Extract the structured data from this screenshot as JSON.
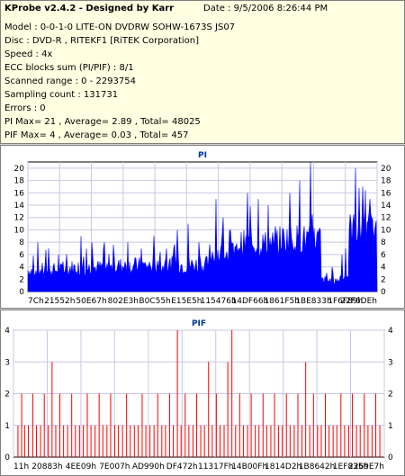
{
  "info": {
    "title": "KProbe v2.4.2 - Designed by Karr",
    "date": "Date : 9/5/2006 8:26:44 PM",
    "lines": [
      "Model : 0-0-1-0 LITE-ON DVDRW SOHW-1673S JS07",
      "Disc : DVD-R , RITEKF1 [RiTEK Corporation]",
      "Speed : 4x",
      "ECC blocks sum (PI/PIF) : 8/1",
      "Scanned range : 0 - 2293754",
      "Sampling count : 131731",
      "Errors : 0",
      "PI Max= 21 , Average= 2.89 , Total= 48025",
      "PIF Max= 4 , Average= 0.03 , Total= 457"
    ]
  },
  "colors": {
    "pi": "#0000ff",
    "pif": "#ff0000",
    "grid": "#c8c8e6",
    "bg": "#ffffe1"
  },
  "chart_data": [
    {
      "type": "bar",
      "title": "PI",
      "ylim": [
        0,
        21
      ],
      "yticks": [
        0,
        2,
        4,
        6,
        8,
        10,
        12,
        14,
        16,
        18,
        20
      ],
      "xtick_labels": [
        "7Ch",
        "21552h",
        "50E67h",
        "802E3h",
        "B0C55h",
        "E15E5h",
        "115476h",
        "14DF66h",
        "1861F5h",
        "1BE833h",
        "1F6F89h",
        "22F6DEh"
      ],
      "segments": [
        {
          "from": 0.0,
          "to": 0.12,
          "base": 2.2,
          "amp": 2.5,
          "spikes": [
            8,
            7,
            6
          ]
        },
        {
          "from": 0.12,
          "to": 0.25,
          "base": 2.4,
          "amp": 2.8,
          "spikes": [
            9,
            8,
            7
          ]
        },
        {
          "from": 0.25,
          "to": 0.4,
          "base": 2.6,
          "amp": 3.0,
          "spikes": [
            8,
            7,
            9
          ]
        },
        {
          "from": 0.4,
          "to": 0.52,
          "base": 2.8,
          "amp": 3.0,
          "spikes": [
            10,
            11,
            8
          ]
        },
        {
          "from": 0.52,
          "to": 0.6,
          "base": 4.2,
          "amp": 4.0,
          "spikes": [
            15,
            12,
            10
          ]
        },
        {
          "from": 0.6,
          "to": 0.72,
          "base": 5.5,
          "amp": 4.5,
          "spikes": [
            16,
            15,
            14
          ]
        },
        {
          "from": 0.72,
          "to": 0.84,
          "base": 6.0,
          "amp": 5.0,
          "spikes": [
            16,
            18,
            21
          ]
        },
        {
          "from": 0.84,
          "to": 0.89,
          "base": 1.0,
          "amp": 1.5,
          "spikes": [
            3,
            4
          ]
        },
        {
          "from": 0.89,
          "to": 0.92,
          "base": 1.5,
          "amp": 2.0,
          "spikes": [
            6,
            7
          ]
        },
        {
          "from": 0.92,
          "to": 1.0,
          "base": 7.0,
          "amp": 6.0,
          "spikes": [
            20,
            17,
            15
          ]
        }
      ]
    },
    {
      "type": "bar",
      "title": "PIF",
      "ylim": [
        0,
        4
      ],
      "yticks": [
        0,
        1,
        2,
        3,
        4
      ],
      "xtick_labels": [
        "11h",
        "20883h",
        "4EE09h",
        "7E007h",
        "AD990h",
        "DF472h",
        "11317Fh",
        "14B00Fh",
        "1814D2h",
        "1B8642h",
        "1EF835h",
        "2269E7h"
      ],
      "bars": [
        {
          "x": 0.012,
          "v": 1
        },
        {
          "x": 0.022,
          "v": 2
        },
        {
          "x": 0.03,
          "v": 1
        },
        {
          "x": 0.04,
          "v": 1
        },
        {
          "x": 0.052,
          "v": 2
        },
        {
          "x": 0.062,
          "v": 1
        },
        {
          "x": 0.073,
          "v": 1
        },
        {
          "x": 0.083,
          "v": 2
        },
        {
          "x": 0.094,
          "v": 1
        },
        {
          "x": 0.104,
          "v": 3
        },
        {
          "x": 0.114,
          "v": 1
        },
        {
          "x": 0.125,
          "v": 2
        },
        {
          "x": 0.135,
          "v": 1
        },
        {
          "x": 0.146,
          "v": 1
        },
        {
          "x": 0.157,
          "v": 2
        },
        {
          "x": 0.167,
          "v": 1
        },
        {
          "x": 0.178,
          "v": 1
        },
        {
          "x": 0.188,
          "v": 1
        },
        {
          "x": 0.199,
          "v": 2
        },
        {
          "x": 0.209,
          "v": 1
        },
        {
          "x": 0.22,
          "v": 1
        },
        {
          "x": 0.231,
          "v": 2
        },
        {
          "x": 0.241,
          "v": 1
        },
        {
          "x": 0.252,
          "v": 1
        },
        {
          "x": 0.262,
          "v": 2
        },
        {
          "x": 0.273,
          "v": 1
        },
        {
          "x": 0.283,
          "v": 1
        },
        {
          "x": 0.294,
          "v": 1
        },
        {
          "x": 0.305,
          "v": 2
        },
        {
          "x": 0.315,
          "v": 1
        },
        {
          "x": 0.326,
          "v": 1
        },
        {
          "x": 0.336,
          "v": 1
        },
        {
          "x": 0.347,
          "v": 2
        },
        {
          "x": 0.357,
          "v": 1
        },
        {
          "x": 0.368,
          "v": 1
        },
        {
          "x": 0.379,
          "v": 1
        },
        {
          "x": 0.389,
          "v": 2
        },
        {
          "x": 0.4,
          "v": 1
        },
        {
          "x": 0.41,
          "v": 1
        },
        {
          "x": 0.421,
          "v": 2
        },
        {
          "x": 0.431,
          "v": 1
        },
        {
          "x": 0.442,
          "v": 4
        },
        {
          "x": 0.452,
          "v": 1
        },
        {
          "x": 0.463,
          "v": 2
        },
        {
          "x": 0.473,
          "v": 1
        },
        {
          "x": 0.484,
          "v": 1
        },
        {
          "x": 0.494,
          "v": 2
        },
        {
          "x": 0.505,
          "v": 1
        },
        {
          "x": 0.515,
          "v": 1
        },
        {
          "x": 0.526,
          "v": 3
        },
        {
          "x": 0.536,
          "v": 1
        },
        {
          "x": 0.547,
          "v": 2
        },
        {
          "x": 0.557,
          "v": 1
        },
        {
          "x": 0.568,
          "v": 1
        },
        {
          "x": 0.578,
          "v": 3
        },
        {
          "x": 0.589,
          "v": 4
        },
        {
          "x": 0.599,
          "v": 1
        },
        {
          "x": 0.61,
          "v": 2
        },
        {
          "x": 0.62,
          "v": 1
        },
        {
          "x": 0.631,
          "v": 1
        },
        {
          "x": 0.641,
          "v": 2
        },
        {
          "x": 0.652,
          "v": 1
        },
        {
          "x": 0.662,
          "v": 1
        },
        {
          "x": 0.673,
          "v": 2
        },
        {
          "x": 0.683,
          "v": 1
        },
        {
          "x": 0.694,
          "v": 1
        },
        {
          "x": 0.704,
          "v": 2
        },
        {
          "x": 0.715,
          "v": 1
        },
        {
          "x": 0.725,
          "v": 1
        },
        {
          "x": 0.736,
          "v": 2
        },
        {
          "x": 0.746,
          "v": 1
        },
        {
          "x": 0.757,
          "v": 1
        },
        {
          "x": 0.767,
          "v": 2
        },
        {
          "x": 0.778,
          "v": 1
        },
        {
          "x": 0.788,
          "v": 3
        },
        {
          "x": 0.799,
          "v": 1
        },
        {
          "x": 0.809,
          "v": 2
        },
        {
          "x": 0.82,
          "v": 1
        },
        {
          "x": 0.83,
          "v": 1
        },
        {
          "x": 0.841,
          "v": 2
        },
        {
          "x": 0.851,
          "v": 1
        },
        {
          "x": 0.862,
          "v": 1
        },
        {
          "x": 0.872,
          "v": 1
        },
        {
          "x": 0.883,
          "v": 2
        },
        {
          "x": 0.893,
          "v": 1
        },
        {
          "x": 0.904,
          "v": 1
        },
        {
          "x": 0.914,
          "v": 2
        },
        {
          "x": 0.925,
          "v": 1
        },
        {
          "x": 0.935,
          "v": 1
        },
        {
          "x": 0.946,
          "v": 2
        },
        {
          "x": 0.956,
          "v": 1
        },
        {
          "x": 0.967,
          "v": 1
        },
        {
          "x": 0.977,
          "v": 2
        },
        {
          "x": 0.988,
          "v": 1
        }
      ]
    }
  ]
}
